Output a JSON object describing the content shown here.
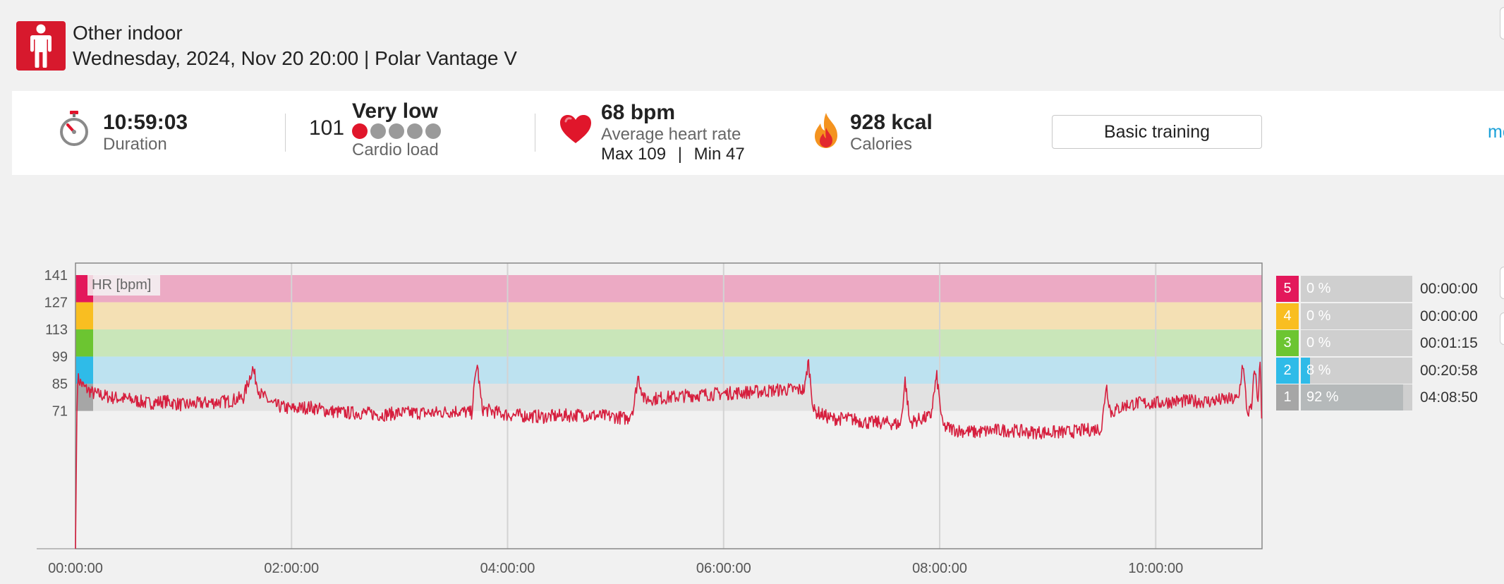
{
  "header": {
    "sport_icon": "person-standing-icon",
    "sport_name": "Other indoor",
    "subtitle": "Wednesday, 2024, Nov 20 20:00 | Polar Vantage V"
  },
  "summary": {
    "duration": {
      "icon": "stopwatch-icon",
      "value": "10:59:03",
      "label": "Duration"
    },
    "cardio_load": {
      "value": "101",
      "level": "Very low",
      "label": "Cardio load",
      "dots_total": 5,
      "dots_active": 1
    },
    "heart_rate": {
      "icon": "heart-icon",
      "value": "68 bpm",
      "label": "Average heart rate",
      "max_label": "Max 109",
      "separator": "|",
      "min_label": "Min 47"
    },
    "calories": {
      "icon": "flame-icon",
      "value": "928 kcal",
      "label": "Calories"
    },
    "benefit_button": "Basic training",
    "more_link": "mo"
  },
  "chart_data": {
    "type": "line",
    "legend_label": "HR [bpm]",
    "y_ticks": [
      141,
      127,
      113,
      99,
      85,
      71
    ],
    "y_range": [
      0,
      141
    ],
    "x_ticks": [
      "00:00:00",
      "02:00:00",
      "04:00:00",
      "06:00:00",
      "08:00:00",
      "10:00:00"
    ],
    "x_range_seconds": [
      0,
      39543
    ],
    "zones": [
      {
        "zone": 5,
        "from": 127,
        "to": 141,
        "color": "#e3185b",
        "band": "#ecaac4"
      },
      {
        "zone": 4,
        "from": 113,
        "to": 127,
        "color": "#f9be21",
        "band": "#f4e0b4"
      },
      {
        "zone": 3,
        "from": 99,
        "to": 113,
        "color": "#6cc531",
        "band": "#c9e6b9"
      },
      {
        "zone": 2,
        "from": 85,
        "to": 99,
        "color": "#2fbbe8",
        "band": "#bde2f0"
      },
      {
        "zone": 1,
        "from": 71,
        "to": 85,
        "color": "#a6a6a6",
        "band": "#e2e2e2"
      }
    ],
    "series": [
      {
        "color": "#d61f3e",
        "points": [
          [
            0,
            0
          ],
          [
            60,
            88
          ],
          [
            300,
            83
          ],
          [
            600,
            80
          ],
          [
            1200,
            78
          ],
          [
            1800,
            77
          ],
          [
            2400,
            75
          ],
          [
            3000,
            76
          ],
          [
            3600,
            74
          ],
          [
            4200,
            75
          ],
          [
            5100,
            76
          ],
          [
            5600,
            78
          ],
          [
            5900,
            93
          ],
          [
            6150,
            80
          ],
          [
            6600,
            74
          ],
          [
            7200,
            72
          ],
          [
            7800,
            73
          ],
          [
            8400,
            71
          ],
          [
            9000,
            70
          ],
          [
            9600,
            70
          ],
          [
            10200,
            69
          ],
          [
            10800,
            70
          ],
          [
            11400,
            70
          ],
          [
            12000,
            70
          ],
          [
            12700,
            71
          ],
          [
            13200,
            70
          ],
          [
            13380,
            96
          ],
          [
            13550,
            72
          ],
          [
            14400,
            69
          ],
          [
            15600,
            68
          ],
          [
            16800,
            69
          ],
          [
            18000,
            68
          ],
          [
            18400,
            67
          ],
          [
            18600,
            73
          ],
          [
            18750,
            89
          ],
          [
            18950,
            77
          ],
          [
            19800,
            78
          ],
          [
            20400,
            79
          ],
          [
            21600,
            80
          ],
          [
            22800,
            81
          ],
          [
            23600,
            82
          ],
          [
            24300,
            82
          ],
          [
            24420,
            97
          ],
          [
            24600,
            71
          ],
          [
            25200,
            67
          ],
          [
            25800,
            67
          ],
          [
            26400,
            65
          ],
          [
            27000,
            65
          ],
          [
            27500,
            64
          ],
          [
            27650,
            87
          ],
          [
            27800,
            65
          ],
          [
            28200,
            67
          ],
          [
            28500,
            68
          ],
          [
            28700,
            89
          ],
          [
            28900,
            63
          ],
          [
            29400,
            61
          ],
          [
            30000,
            60
          ],
          [
            30600,
            61
          ],
          [
            31200,
            61
          ],
          [
            31800,
            60
          ],
          [
            32400,
            60
          ],
          [
            33000,
            60
          ],
          [
            33600,
            61
          ],
          [
            34200,
            62
          ],
          [
            34350,
            85
          ],
          [
            34500,
            70
          ],
          [
            35000,
            74
          ],
          [
            35400,
            75
          ],
          [
            36000,
            75
          ],
          [
            36600,
            76
          ],
          [
            37200,
            76
          ],
          [
            37800,
            76
          ],
          [
            38400,
            77
          ],
          [
            38760,
            77
          ],
          [
            38900,
            96
          ],
          [
            39050,
            70
          ],
          [
            39200,
            72
          ],
          [
            39300,
            95
          ],
          [
            39400,
            75
          ],
          [
            39480,
            97
          ],
          [
            39543,
            61
          ]
        ]
      }
    ],
    "zone_summary": [
      {
        "zone": "5",
        "percent": "0 %",
        "fraction": 0.0,
        "time": "00:00:00"
      },
      {
        "zone": "4",
        "percent": "0 %",
        "fraction": 0.0,
        "time": "00:00:00"
      },
      {
        "zone": "3",
        "percent": "0 %",
        "fraction": 0.0,
        "time": "00:01:15"
      },
      {
        "zone": "2",
        "percent": "8 %",
        "fraction": 0.08,
        "time": "00:20:58"
      },
      {
        "zone": "1",
        "percent": "92 %",
        "fraction": 0.92,
        "time": "04:08:50"
      }
    ]
  }
}
